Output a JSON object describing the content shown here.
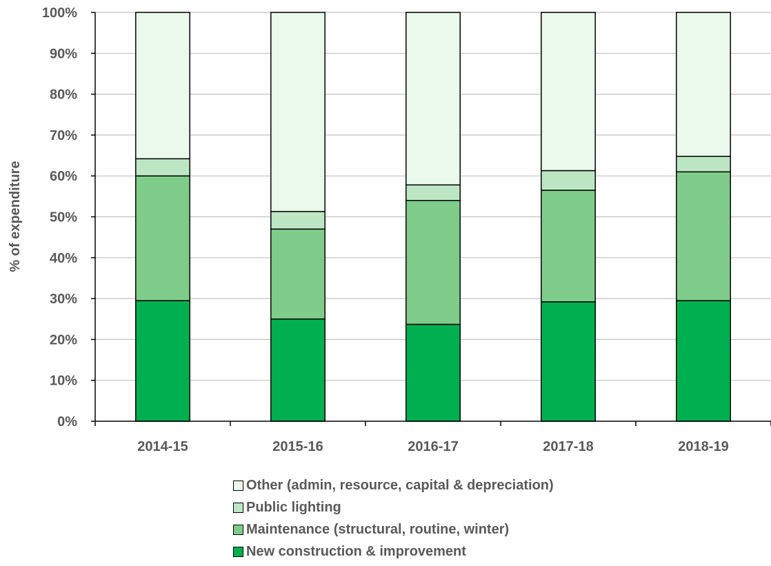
{
  "chart_data": {
    "type": "bar",
    "stacked": true,
    "categories": [
      "2014-15",
      "2015-16",
      "2016-17",
      "2017-18",
      "2018-19"
    ],
    "series": [
      {
        "name": "New construction & improvement",
        "values": [
          29.5,
          25,
          23.7,
          29.2,
          29.5
        ],
        "color": "#00b050"
      },
      {
        "name": "Maintenance (structural, routine, winter)",
        "values": [
          30.5,
          22,
          30.3,
          27.3,
          31.5
        ],
        "color": "#7fcc8a"
      },
      {
        "name": "Public lighting",
        "values": [
          4.2,
          4.3,
          3.8,
          4.8,
          3.8
        ],
        "color": "#bde6c4"
      },
      {
        "name": "Other (admin, resource, capital & depreciation)",
        "values": [
          35.8,
          48.7,
          42.2,
          38.7,
          35.2
        ],
        "color": "#ebf8ec"
      }
    ],
    "ylabel": "% of expenditure",
    "ylim": [
      0,
      100
    ],
    "yticks": [
      "0%",
      "10%",
      "20%",
      "30%",
      "40%",
      "50%",
      "60%",
      "70%",
      "80%",
      "90%",
      "100%"
    ],
    "grid": true,
    "legend_position": "bottom"
  }
}
